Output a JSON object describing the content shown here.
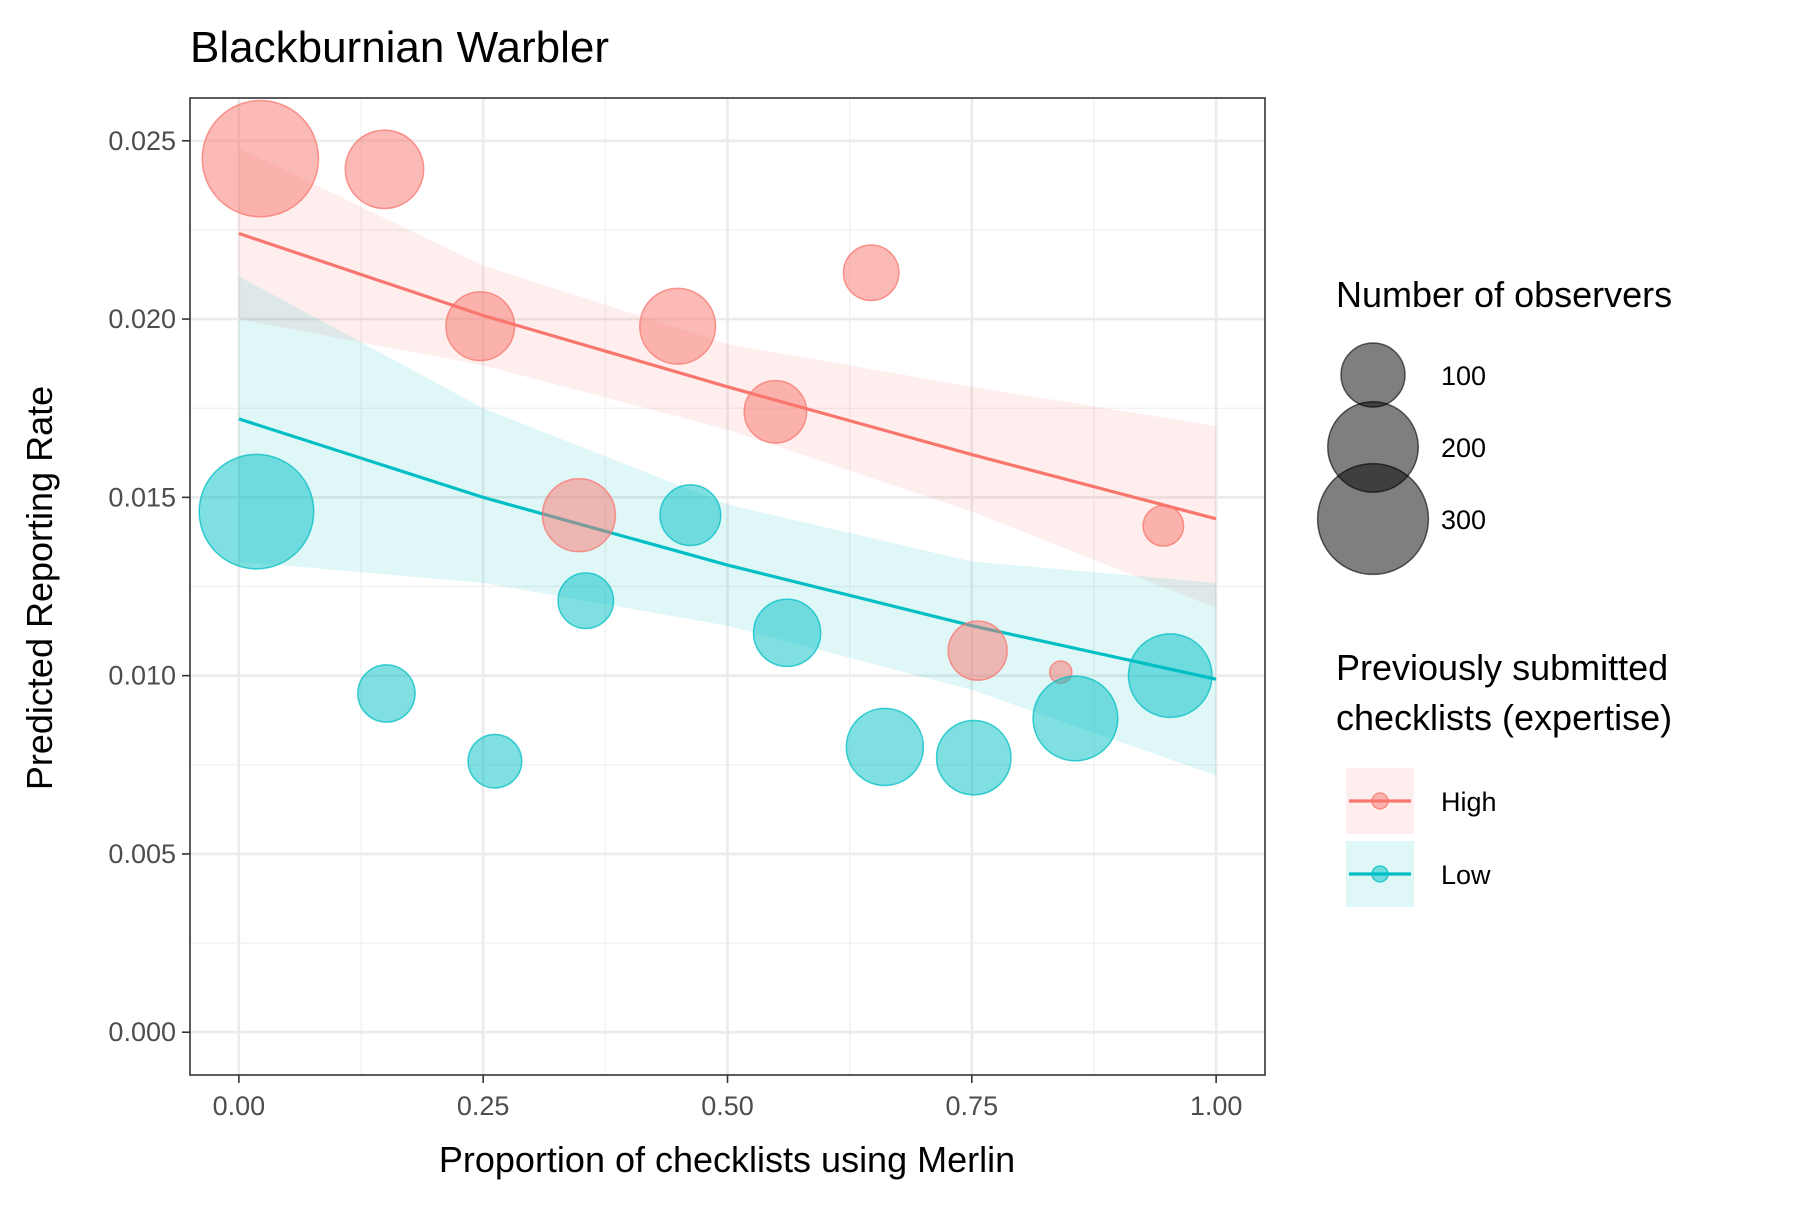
{
  "chart_data": {
    "type": "scatter",
    "title": "Blackburnian Warbler",
    "xlabel": "Proportion of checklists using Merlin",
    "ylabel": "Predicted Reporting Rate",
    "xlim": [
      -0.05,
      1.05
    ],
    "ylim": [
      -0.0012,
      0.0262
    ],
    "x_ticks": [
      0.0,
      0.25,
      0.5,
      0.75,
      1.0
    ],
    "x_tick_labels": [
      "0.00",
      "0.25",
      "0.50",
      "0.75",
      "1.00"
    ],
    "y_ticks": [
      0.0,
      0.005,
      0.01,
      0.015,
      0.02,
      0.025
    ],
    "y_tick_labels": [
      "0.000",
      "0.005",
      "0.010",
      "0.015",
      "0.020",
      "0.025"
    ],
    "grid": true,
    "size_legend": {
      "title": "Number of observers",
      "entries": [
        {
          "value": 100,
          "label": "100"
        },
        {
          "value": 200,
          "label": "200"
        },
        {
          "value": 300,
          "label": "300"
        }
      ]
    },
    "color_legend": {
      "title_lines": [
        "Previously submitted",
        "checklists (expertise)"
      ]
    },
    "series": [
      {
        "name": "High",
        "color": "#F8766D",
        "points": [
          {
            "x": 0.022,
            "y": 0.0245,
            "n": 330
          },
          {
            "x": 0.149,
            "y": 0.0242,
            "n": 150
          },
          {
            "x": 0.247,
            "y": 0.0198,
            "n": 115
          },
          {
            "x": 0.449,
            "y": 0.0198,
            "n": 140
          },
          {
            "x": 0.647,
            "y": 0.0213,
            "n": 75
          },
          {
            "x": 0.549,
            "y": 0.0174,
            "n": 95
          },
          {
            "x": 0.348,
            "y": 0.0145,
            "n": 130
          },
          {
            "x": 0.946,
            "y": 0.0142,
            "n": 40
          },
          {
            "x": 0.756,
            "y": 0.0107,
            "n": 85
          },
          {
            "x": 0.841,
            "y": 0.0101,
            "n": 12
          }
        ],
        "fit": {
          "x": [
            0.0,
            0.25,
            0.5,
            0.75,
            1.0
          ],
          "y": [
            0.0224,
            0.0201,
            0.0181,
            0.0162,
            0.0144
          ]
        },
        "ci_lower": [
          0.02,
          0.0187,
          0.0169,
          0.0146,
          0.0119
        ],
        "ci_upper": [
          0.0248,
          0.0215,
          0.0193,
          0.0181,
          0.017
        ]
      },
      {
        "name": "Low",
        "color": "#00BFC4",
        "points": [
          {
            "x": 0.018,
            "y": 0.0146,
            "n": 320
          },
          {
            "x": 0.462,
            "y": 0.0145,
            "n": 90
          },
          {
            "x": 0.355,
            "y": 0.0121,
            "n": 75
          },
          {
            "x": 0.561,
            "y": 0.0112,
            "n": 110
          },
          {
            "x": 0.953,
            "y": 0.01,
            "n": 170
          },
          {
            "x": 0.151,
            "y": 0.0095,
            "n": 80
          },
          {
            "x": 0.856,
            "y": 0.0088,
            "n": 175
          },
          {
            "x": 0.661,
            "y": 0.008,
            "n": 145
          },
          {
            "x": 0.752,
            "y": 0.0077,
            "n": 135
          },
          {
            "x": 0.262,
            "y": 0.0076,
            "n": 70
          }
        ],
        "fit": {
          "x": [
            0.0,
            0.25,
            0.5,
            0.75,
            1.0
          ],
          "y": [
            0.0172,
            0.015,
            0.0131,
            0.0114,
            0.0099
          ]
        },
        "ci_lower": [
          0.0132,
          0.0126,
          0.0114,
          0.0096,
          0.0072
        ],
        "ci_upper": [
          0.0212,
          0.0175,
          0.0148,
          0.0132,
          0.0126
        ]
      }
    ]
  }
}
